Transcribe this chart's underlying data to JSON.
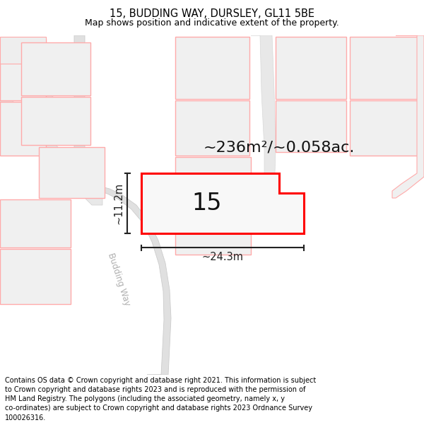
{
  "title": "15, BUDDING WAY, DURSLEY, GL11 5BE",
  "subtitle": "Map shows position and indicative extent of the property.",
  "footer": "Contains OS data © Crown copyright and database right 2021. This information is subject to Crown copyright and database rights 2023 and is reproduced with the permission of HM Land Registry. The polygons (including the associated geometry, namely x, y co-ordinates) are subject to Crown copyright and database rights 2023 Ordnance Survey 100026316.",
  "area_text": "~236m²/~0.058ac.",
  "width_text": "~24.3m",
  "height_text": "~11.2m",
  "plot_number": "15",
  "bg_color": "#ffffff",
  "plot_fill": "#f5f5f5",
  "plot_stroke": "#ff0000",
  "other_fill": "#f0f0f0",
  "other_stroke": "#ffaaaa",
  "road_fill": "#e0e0e0",
  "road_stroke": "#cccccc",
  "dim_color": "#222222",
  "title_fontsize": 10.5,
  "subtitle_fontsize": 9,
  "footer_fontsize": 7.0,
  "area_fontsize": 16,
  "plot_num_fontsize": 24
}
